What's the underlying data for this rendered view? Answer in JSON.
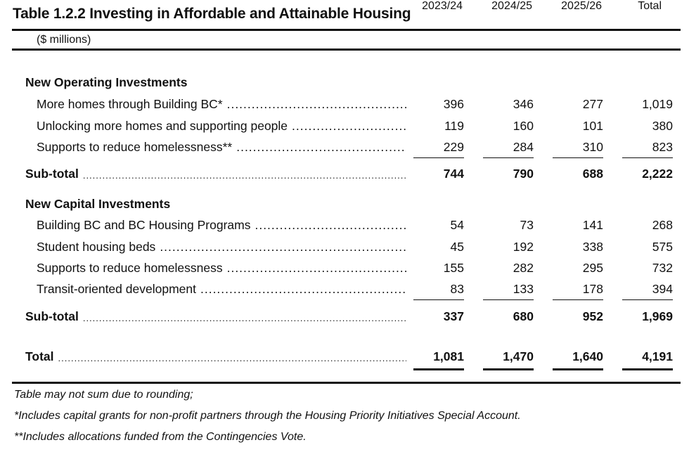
{
  "title": "Table 1.2.2  Investing in Affordable and Attainable Housing",
  "header": {
    "units": "($ millions)",
    "columns": [
      "2023/24",
      "2024/25",
      "2025/26",
      "Total"
    ]
  },
  "sections": [
    {
      "heading": "New Operating Investments",
      "rows": [
        {
          "label": "More homes through Building BC*",
          "values": [
            "396",
            "346",
            "277",
            "1,019"
          ]
        },
        {
          "label": "Unlocking more homes and supporting people",
          "values": [
            "119",
            "160",
            "101",
            "380"
          ]
        },
        {
          "label": "Supports to reduce homelessness**",
          "values": [
            "229",
            "284",
            "310",
            "823"
          ]
        }
      ],
      "subtotal": {
        "label": "Sub-total",
        "values": [
          "744",
          "790",
          "688",
          "2,222"
        ]
      }
    },
    {
      "heading": "New Capital Investments",
      "rows": [
        {
          "label": "Building BC and BC Housing Programs",
          "values": [
            "54",
            "73",
            "141",
            "268"
          ]
        },
        {
          "label": "Student housing beds",
          "values": [
            "45",
            "192",
            "338",
            "575"
          ]
        },
        {
          "label": "Supports to reduce homelessness",
          "values": [
            "155",
            "282",
            "295",
            "732"
          ]
        },
        {
          "label": "Transit-oriented development",
          "values": [
            "83",
            "133",
            "178",
            "394"
          ]
        }
      ],
      "subtotal": {
        "label": "Sub-total",
        "values": [
          "337",
          "680",
          "952",
          "1,969"
        ]
      }
    }
  ],
  "total": {
    "label": "Total",
    "values": [
      "1,081",
      "1,470",
      "1,640",
      "4,191"
    ]
  },
  "footnotes": [
    "Table may not sum due to rounding;",
    "*Includes capital grants for non-profit partners through the Housing Priority Initiatives Special Account.",
    "**Includes allocations funded from the Contingencies Vote."
  ]
}
